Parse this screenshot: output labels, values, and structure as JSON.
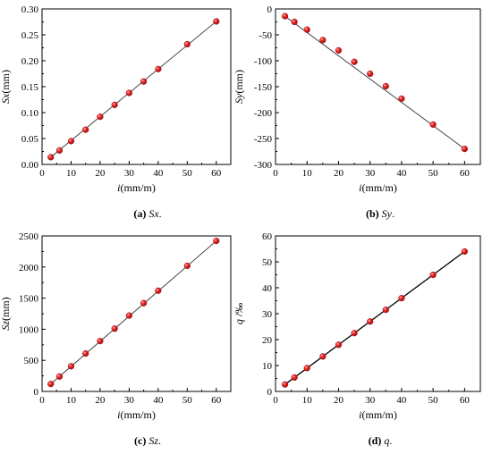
{
  "chart_data": [
    {
      "type": "scatter",
      "panel": "a",
      "caption": {
        "label": "(a)",
        "name": "Sx",
        "suffix": "."
      },
      "xlabel": {
        "italic": "i",
        "rest": "(mm/m)"
      },
      "ylabel": {
        "italic": "Sx",
        "rest": "(mm)"
      },
      "xlim": [
        0,
        65
      ],
      "ylim": [
        0,
        0.3
      ],
      "xticks": [
        "0",
        "10",
        "20",
        "30",
        "40",
        "50",
        "60"
      ],
      "yticks": [
        "0.00",
        "0.05",
        "0.10",
        "0.15",
        "0.20",
        "0.25",
        "0.30"
      ],
      "x": [
        3,
        6,
        10,
        15,
        20,
        25,
        30,
        35,
        40,
        50,
        60
      ],
      "y": [
        0.014,
        0.027,
        0.045,
        0.067,
        0.092,
        0.115,
        0.138,
        0.16,
        0.184,
        0.232,
        0.276
      ],
      "fit_line": [
        [
          3,
          0.014
        ],
        [
          60,
          0.276
        ]
      ],
      "marker_color": "#e8191f",
      "line_color": "#333333"
    },
    {
      "type": "scatter",
      "panel": "b",
      "caption": {
        "label": "(b)",
        "name": "Sy",
        "suffix": "."
      },
      "xlabel": {
        "italic": "i",
        "rest": "(mm/m)"
      },
      "ylabel": {
        "italic": "Sy",
        "rest": "(mm)"
      },
      "xlim": [
        0,
        65
      ],
      "ylim": [
        -300,
        0
      ],
      "xticks": [
        "0",
        "10",
        "20",
        "30",
        "40",
        "50",
        "60"
      ],
      "yticks": [
        "-300",
        "-250",
        "-200",
        "-150",
        "-100",
        "-50",
        "0"
      ],
      "x": [
        3,
        6,
        10,
        15,
        20,
        25,
        30,
        35,
        40,
        50,
        60
      ],
      "y": [
        -14,
        -25,
        -40,
        -60,
        -80,
        -102,
        -125,
        -149,
        -173,
        -223,
        -270
      ],
      "fit_line": [
        [
          3,
          -14
        ],
        [
          60,
          -270
        ]
      ],
      "marker_color": "#e8191f",
      "line_color": "#333333"
    },
    {
      "type": "scatter",
      "panel": "c",
      "caption": {
        "label": "(c)",
        "name": "Sz",
        "suffix": "."
      },
      "xlabel": {
        "italic": "i",
        "rest": "(mm/m)"
      },
      "ylabel": {
        "italic": "Sz",
        "rest": "(mm)"
      },
      "xlim": [
        0,
        65
      ],
      "ylim": [
        0,
        2500
      ],
      "xticks": [
        "0",
        "10",
        "20",
        "30",
        "40",
        "50",
        "60"
      ],
      "yticks": [
        "0",
        "500",
        "1000",
        "1500",
        "2000",
        "2500"
      ],
      "x": [
        3,
        6,
        10,
        15,
        20,
        25,
        30,
        35,
        40,
        50,
        60
      ],
      "y": [
        120,
        240,
        405,
        610,
        810,
        1010,
        1220,
        1420,
        1620,
        2020,
        2420
      ],
      "fit_line": [
        [
          3,
          120
        ],
        [
          60,
          2420
        ]
      ],
      "marker_color": "#e8191f",
      "line_color": "#333333"
    },
    {
      "type": "scatter",
      "panel": "d",
      "caption": {
        "label": "(d)",
        "name": "q",
        "suffix": "."
      },
      "xlabel": {
        "italic": "i",
        "rest": "(mm/m)"
      },
      "ylabel": {
        "italic": "q",
        "rest": " /‰"
      },
      "xlim": [
        0,
        65
      ],
      "ylim": [
        0,
        60
      ],
      "xticks": [
        "0",
        "10",
        "20",
        "30",
        "40",
        "50",
        "60"
      ],
      "yticks": [
        "0",
        "10",
        "20",
        "30",
        "40",
        "50",
        "60"
      ],
      "x": [
        3,
        6,
        10,
        15,
        20,
        25,
        30,
        35,
        40,
        50,
        60
      ],
      "y": [
        2.7,
        5.4,
        9.0,
        13.5,
        18.0,
        22.5,
        27.0,
        31.5,
        36.0,
        45.0,
        54.0
      ],
      "fit_line": [
        [
          3,
          2.7
        ],
        [
          60,
          54.0
        ]
      ],
      "marker_color": "#e8191f",
      "line_color": "#000000"
    }
  ]
}
